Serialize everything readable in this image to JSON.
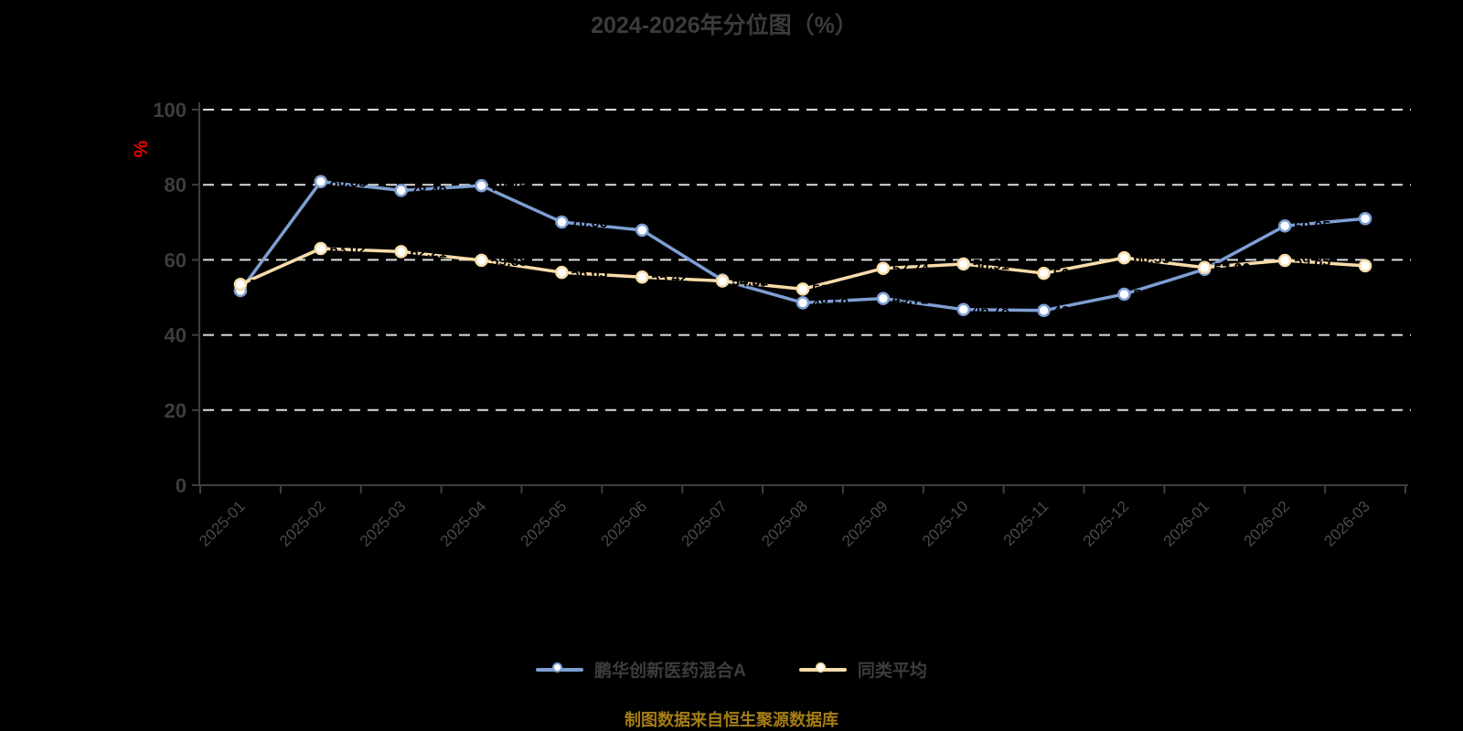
{
  "title": "2024-2026年分位图（%）",
  "source_note": "制图数据来自恒生聚源数据库",
  "colors": {
    "background": "#000000",
    "title": "#3b3b3b",
    "axis": "#3f3f3f",
    "x_label": "#4a4a4a",
    "y_label": "#3d3d3d",
    "gridline": "#dcdcdc",
    "unit_label": "#ee0000",
    "legend_text": "#3c3c3c",
    "series_fund": "#7e9fd4",
    "series_average": "#f8dcaa",
    "marker_fill": "#ffffff",
    "data_label": "#000000",
    "source_note_color": "#a57d16"
  },
  "legend": {
    "items": [
      {
        "label": "鹏华创新医药混合A",
        "color": "#7e9fd4"
      },
      {
        "label": "同类平均",
        "color": "#f8dcaa"
      }
    ]
  },
  "chart_data": {
    "type": "line",
    "title": "2024-2026年分位图（%）",
    "xlabel": "",
    "ylabel": "%",
    "ylim": [
      0,
      100
    ],
    "yticks": [
      0,
      20,
      40,
      60,
      80,
      100
    ],
    "grid": "horizontal dashed gridlines on black background",
    "legend_position": "bottom",
    "categories": [
      "2025-01",
      "2025-02",
      "2025-03",
      "2025-04",
      "2025-05",
      "2025-06",
      "2025-07",
      "2025-08",
      "2025-09",
      "2025-10",
      "2025-11",
      "2025-12",
      "2026-01",
      "2026-02",
      "2026-03"
    ],
    "series": [
      {
        "name": "鹏华创新医药混合A",
        "color": "#7e9fd4",
        "marker": "circle",
        "values": [
          51.82,
          80.85,
          78.49,
          79.76,
          70.06,
          67.92,
          54.62,
          48.58,
          49.72,
          46.78,
          46.52,
          50.86,
          57.49,
          69.05,
          70.98
        ]
      },
      {
        "name": "同类平均",
        "color": "#f8dcaa",
        "marker": "circle",
        "values": [
          53.47,
          63.02,
          62.21,
          59.88,
          56.65,
          55.42,
          54.37,
          52.21,
          57.74,
          58.91,
          56.43,
          60.55,
          57.96,
          59.85,
          58.43
        ]
      }
    ]
  }
}
